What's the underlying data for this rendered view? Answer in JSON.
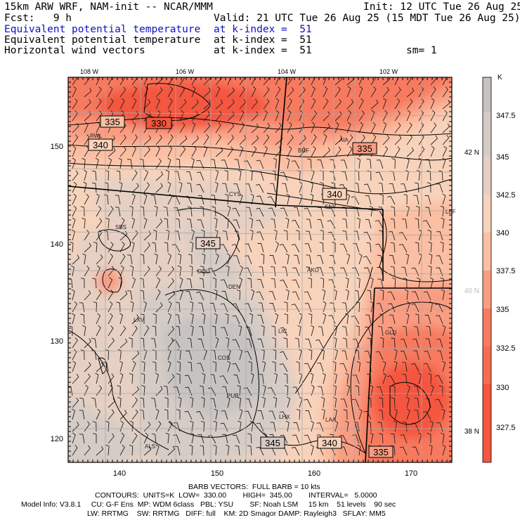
{
  "header": {
    "model": "15km ARW WRF, NAM-init -- NCAR/MMM",
    "init": "Init: 12 UTC Tue 26 Aug 25",
    "fcst": "Fcst:   9 h",
    "valid": "Valid: 21 UTC Tue 26 Aug 25 (15 MDT Tue 26 Aug 25)",
    "field1_name": "Equivalent potential temperature",
    "field1_level": "at k-index =  51",
    "field2_name": "Equivalent potential temperature",
    "field2_level": "at k-index =  51",
    "field3_name": "Horizontal wind vectors",
    "field3_level": "at k-index =  51",
    "smooth": "sm= 1"
  },
  "colors": {
    "title_blue": "#1010c0",
    "palette": [
      "#f4563f",
      "#f77a5f",
      "#f99d82",
      "#fbbfa3",
      "#f8d3bb",
      "#e6d0c3",
      "#d6ccc6",
      "#c7c3c1"
    ]
  },
  "map": {
    "top_lon_labels": [
      "108 W",
      "106 W",
      "104 W",
      "102 W"
    ],
    "left_grid_labels": [
      "150",
      "140",
      "130",
      "120"
    ],
    "bottom_grid_labels": [
      "140",
      "150",
      "160",
      "170"
    ],
    "right_lat_labels": [
      "42 N",
      "40 N",
      "38 N"
    ],
    "contour_labels": [
      "335",
      "330",
      "340",
      "335",
      "340",
      "345",
      "345",
      "340",
      "335"
    ],
    "stations": [
      "RWL",
      "BRF",
      "AIA",
      "CYS",
      "SNY",
      "LBF",
      "SBS",
      "DOU",
      "DEN",
      "AKO",
      "LXV",
      "LIC",
      "GLD",
      "COS",
      "PUB",
      "LHX",
      "LAA",
      "ALS"
    ]
  },
  "legend": {
    "unit": "K",
    "levels": [
      "347.5",
      "345",
      "342.5",
      "340",
      "337.5",
      "335",
      "332.5",
      "330",
      "327.5"
    ]
  },
  "footer": {
    "barb_line": "BARB VECTORS:  FULL BARB = 10 kts",
    "contour_line": "CONTOURS:  UNITS=K  LOW=  330.00        HIGH=  345.00        INTERVAL=   5.0000",
    "model_info": "Model Info: V3.8.1     CU: G-F Ens  MP: WDM 6class   PBL: YSU        SF: Noah LSM     15 km    51 levels    90 sec",
    "model_info2": "LW: RRTMG    SW: RRTMG   DIFF: full    KM: 2D Smagor DAMP: Rayleigh3   SFLAY: MM5"
  }
}
